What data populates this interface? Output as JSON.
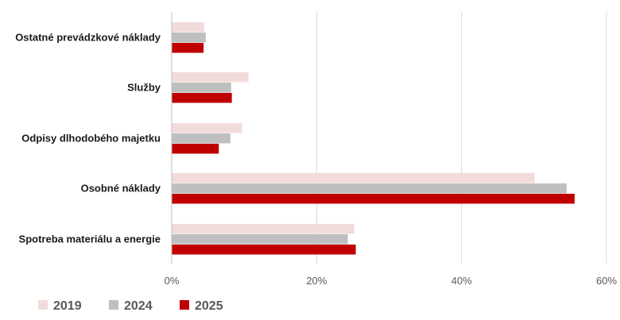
{
  "chart_data": {
    "type": "bar",
    "orientation": "horizontal",
    "categories": [
      "Ostatné prevádzkové náklady",
      "Služby",
      "Odpisy dlhodobého majetku",
      "Osobné náklady",
      "Spotreba materiálu a energie"
    ],
    "series": [
      {
        "name": "2019",
        "color": "#f2dcdb",
        "values": [
          4.5,
          10.6,
          9.7,
          50.1,
          25.2
        ]
      },
      {
        "name": "2024",
        "color": "#bfbfbf",
        "values": [
          4.7,
          8.2,
          8.1,
          54.5,
          24.3
        ]
      },
      {
        "name": "2025",
        "color": "#c00000",
        "values": [
          4.4,
          8.3,
          6.5,
          55.6,
          25.4
        ]
      }
    ],
    "xticks": [
      "0%",
      "20%",
      "40%",
      "60%"
    ],
    "xlim": [
      0,
      60
    ],
    "unit": "%",
    "grid": "vertical",
    "legend_position": "bottom-left",
    "title": "",
    "xlabel": "",
    "ylabel": ""
  }
}
